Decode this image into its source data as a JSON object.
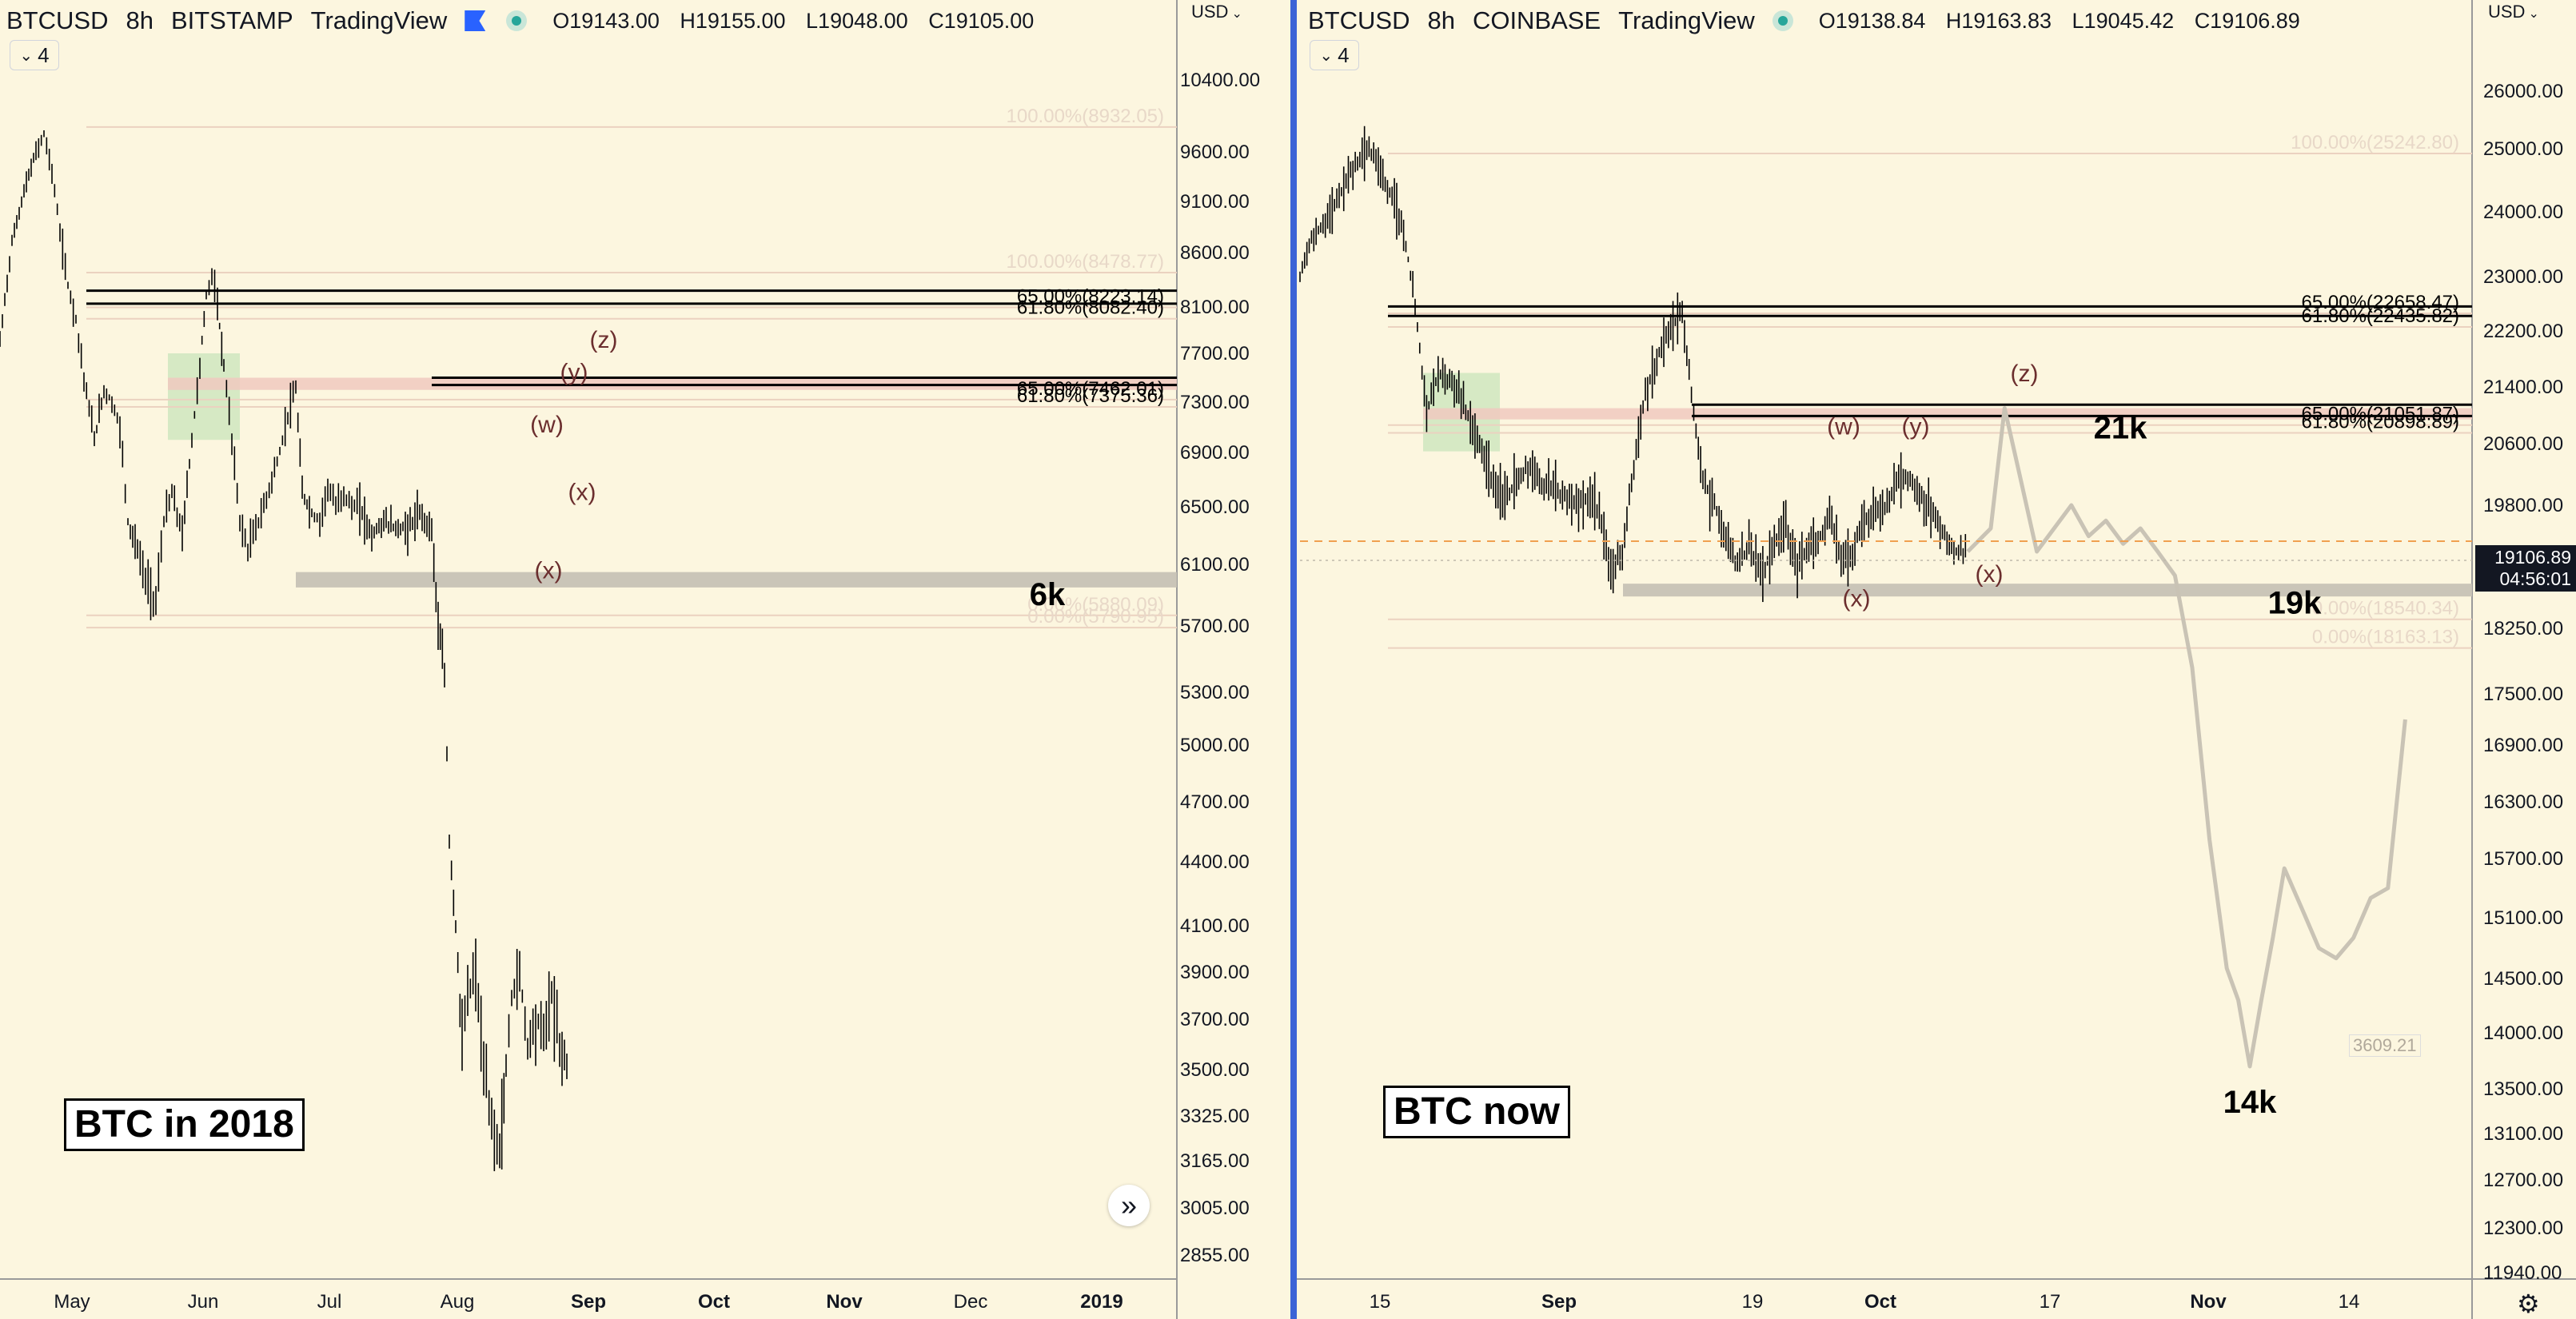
{
  "colors": {
    "background": "#fcf6df",
    "candle": "#000000",
    "fib_line": "#ebd2c0",
    "fib_text": "#e8d8c8",
    "support_band": "#c7c2b5",
    "resistance_band": "#f0c9bf",
    "accumulation_box": "#cfe6c0",
    "wave_label": "#6b2e2e",
    "projection": "#c9c3b5",
    "current_price_line": "#f0a050",
    "divider": "#3b63d6"
  },
  "chart_data": [
    {
      "type": "candlestick",
      "header": {
        "symbol": "BTCUSD",
        "interval": "8h",
        "exchange": "BITSTAMP",
        "source": "TradingView",
        "open": "O19143.00",
        "high": "H19155.00",
        "low": "L19048.00",
        "close": "C19105.00"
      },
      "collapse_label": "4",
      "currency": "USD",
      "title": "BTC in 2018",
      "y_ticks": [
        "10400.00",
        "9600.00",
        "9100.00",
        "8600.00",
        "8100.00",
        "7700.00",
        "7300.00",
        "6900.00",
        "6500.00",
        "6100.00",
        "5700.00",
        "5300.00",
        "5000.00",
        "4700.00",
        "4400.00",
        "4100.00",
        "3900.00",
        "3700.00",
        "3500.00",
        "3325.00",
        "3165.00",
        "3005.00",
        "2855.00"
      ],
      "x_ticks": [
        "May",
        "Jun",
        "Jul",
        "Aug",
        "Sep",
        "Oct",
        "Nov",
        "Dec",
        "2019"
      ],
      "last_price_tag": "3609.21",
      "price_path": [
        [
          0,
          7800
        ],
        [
          15,
          8700
        ],
        [
          30,
          9200
        ],
        [
          45,
          9600
        ],
        [
          55,
          9800
        ],
        [
          65,
          9400
        ],
        [
          75,
          8800
        ],
        [
          85,
          8300
        ],
        [
          95,
          8000
        ],
        [
          105,
          7500
        ],
        [
          118,
          7000
        ],
        [
          130,
          7400
        ],
        [
          140,
          7300
        ],
        [
          150,
          7100
        ],
        [
          160,
          6400
        ],
        [
          172,
          6200
        ],
        [
          182,
          6000
        ],
        [
          195,
          5850
        ],
        [
          205,
          6400
        ],
        [
          215,
          6600
        ],
        [
          228,
          6300
        ],
        [
          240,
          7000
        ],
        [
          250,
          7600
        ],
        [
          258,
          8200
        ],
        [
          265,
          8400
        ],
        [
          272,
          8100
        ],
        [
          280,
          7600
        ],
        [
          290,
          7000
        ],
        [
          300,
          6400
        ],
        [
          310,
          6200
        ],
        [
          320,
          6350
        ],
        [
          330,
          6500
        ],
        [
          340,
          6700
        ],
        [
          350,
          6900
        ],
        [
          360,
          7200
        ],
        [
          370,
          7400
        ],
        [
          378,
          6600
        ],
        [
          390,
          6450
        ],
        [
          400,
          6400
        ],
        [
          410,
          6650
        ],
        [
          420,
          6500
        ],
        [
          430,
          6600
        ],
        [
          440,
          6500
        ],
        [
          450,
          6500
        ],
        [
          465,
          6300
        ],
        [
          480,
          6400
        ],
        [
          495,
          6350
        ],
        [
          510,
          6350
        ],
        [
          525,
          6450
        ],
        [
          540,
          6350
        ],
        [
          548,
          5700
        ],
        [
          556,
          5400
        ],
        [
          562,
          4500
        ],
        [
          570,
          4100
        ],
        [
          578,
          3600
        ],
        [
          585,
          3800
        ],
        [
          595,
          3900
        ],
        [
          605,
          3500
        ],
        [
          615,
          3300
        ],
        [
          625,
          3200
        ],
        [
          633,
          3500
        ],
        [
          640,
          3800
        ],
        [
          650,
          3900
        ],
        [
          660,
          3600
        ],
        [
          670,
          3700
        ],
        [
          680,
          3650
        ],
        [
          690,
          3800
        ],
        [
          700,
          3600
        ],
        [
          712,
          3500
        ]
      ],
      "support_band": {
        "low": 5950,
        "high": 6050,
        "label": "6k"
      },
      "resistance_band": {
        "low": 7400,
        "high": 7500
      },
      "accumulation_zone": {
        "low": 7000,
        "high": 7700
      },
      "horizontal_lines": [
        8250,
        8130,
        7500,
        7440
      ],
      "fib_levels": [
        {
          "label": "100.00%(8932.05)",
          "price": 9930
        },
        {
          "label": "100.00%(8478.77)",
          "price": 8460
        },
        {
          "label": "65.00%(8223.14)",
          "price": 8140
        },
        {
          "label": "61.80%(8082.40)",
          "price": 8040
        },
        {
          "label": "65.00%(7462.01)",
          "price": 7360
        },
        {
          "label": "61.80%(7375.36)",
          "price": 7300
        },
        {
          "label": "0.00%(5880.09)",
          "price": 5800
        },
        {
          "label": "0.00%(5790.95)",
          "price": 5720
        }
      ],
      "wave_labels": [
        {
          "text": "(z)",
          "price": 7750
        },
        {
          "text": "(y)",
          "price": 7480
        },
        {
          "text": "(w)",
          "price": 7060
        },
        {
          "text": "(x)",
          "price": 6550
        },
        {
          "text": "(x)",
          "price": 6010
        }
      ]
    },
    {
      "type": "candlestick",
      "header": {
        "symbol": "BTCUSD",
        "interval": "8h",
        "exchange": "COINBASE",
        "source": "TradingView",
        "open": "O19138.84",
        "high": "H19163.83",
        "low": "L19045.42",
        "close": "C19106.89"
      },
      "collapse_label": "4",
      "currency": "USD",
      "title": "BTC now",
      "y_ticks": [
        "26000.00",
        "25000.00",
        "24000.00",
        "23000.00",
        "22200.00",
        "21400.00",
        "20600.00",
        "19800.00",
        "19106.89",
        "18250.00",
        "17500.00",
        "16900.00",
        "16300.00",
        "15700.00",
        "15100.00",
        "14500.00",
        "14000.00",
        "13500.00",
        "13100.00",
        "12700.00",
        "12300.00",
        "11940.00"
      ],
      "x_ticks": [
        "15",
        "Sep",
        "19",
        "Oct",
        "17",
        "Nov",
        "14"
      ],
      "current_price": "19106.89",
      "countdown": "04:56:01",
      "price_path": [
        [
          0,
          23000
        ],
        [
          10,
          23600
        ],
        [
          20,
          23800
        ],
        [
          30,
          24100
        ],
        [
          40,
          24500
        ],
        [
          50,
          24800
        ],
        [
          60,
          25050
        ],
        [
          70,
          24600
        ],
        [
          80,
          24200
        ],
        [
          90,
          23700
        ],
        [
          100,
          22600
        ],
        [
          110,
          21000
        ],
        [
          120,
          21600
        ],
        [
          130,
          21500
        ],
        [
          140,
          21200
        ],
        [
          150,
          20800
        ],
        [
          160,
          20400
        ],
        [
          170,
          20000
        ],
        [
          180,
          19900
        ],
        [
          190,
          20200
        ],
        [
          200,
          20300
        ],
        [
          210,
          20100
        ],
        [
          220,
          20000
        ],
        [
          230,
          19900
        ],
        [
          240,
          19800
        ],
        [
          250,
          19900
        ],
        [
          260,
          19700
        ],
        [
          270,
          19000
        ],
        [
          280,
          19200
        ],
        [
          290,
          20300
        ],
        [
          300,
          21300
        ],
        [
          310,
          21800
        ],
        [
          320,
          22200
        ],
        [
          332,
          22500
        ],
        [
          342,
          21000
        ],
        [
          350,
          20100
        ],
        [
          360,
          19800
        ],
        [
          370,
          19400
        ],
        [
          380,
          19000
        ],
        [
          390,
          19300
        ],
        [
          400,
          18900
        ],
        [
          410,
          19200
        ],
        [
          420,
          19600
        ],
        [
          430,
          19000
        ],
        [
          440,
          19200
        ],
        [
          450,
          19300
        ],
        [
          460,
          19700
        ],
        [
          470,
          19100
        ],
        [
          480,
          19200
        ],
        [
          490,
          19600
        ],
        [
          500,
          19700
        ],
        [
          510,
          19800
        ],
        [
          520,
          20200
        ],
        [
          530,
          20100
        ],
        [
          540,
          19900
        ],
        [
          550,
          19700
        ],
        [
          560,
          19400
        ],
        [
          570,
          19200
        ],
        [
          580,
          19200
        ]
      ],
      "projection_path": [
        [
          580,
          19200
        ],
        [
          600,
          19500
        ],
        [
          612,
          21100
        ],
        [
          625,
          20200
        ],
        [
          640,
          19200
        ],
        [
          655,
          19500
        ],
        [
          670,
          19800
        ],
        [
          685,
          19400
        ],
        [
          700,
          19600
        ],
        [
          715,
          19300
        ],
        [
          730,
          19500
        ],
        [
          745,
          19200
        ],
        [
          760,
          18900
        ],
        [
          775,
          17800
        ],
        [
          790,
          15900
        ],
        [
          805,
          14600
        ],
        [
          815,
          14300
        ],
        [
          825,
          13700
        ],
        [
          835,
          14300
        ],
        [
          845,
          14900
        ],
        [
          855,
          15600
        ],
        [
          870,
          15200
        ],
        [
          885,
          14800
        ],
        [
          900,
          14700
        ],
        [
          915,
          14900
        ],
        [
          930,
          15300
        ],
        [
          945,
          15400
        ],
        [
          960,
          17200
        ]
      ],
      "support_band": {
        "low": 18650,
        "high": 18800,
        "label": "19k"
      },
      "resistance_band": {
        "low": 20950,
        "high": 21100,
        "label": "21k"
      },
      "projection_target": "14k",
      "accumulation_zone": {
        "low": 20500,
        "high": 21600
      },
      "horizontal_lines": [
        22560,
        22420,
        21150,
        20990
      ],
      "fib_levels": [
        {
          "label": "100.00%(25242.80)",
          "price": 25000
        },
        {
          "label": "65.00%(22658.47)",
          "price": 22530
        },
        {
          "label": "61.80%(22435.82)",
          "price": 22330
        },
        {
          "label": "65.00%(21051.87)",
          "price": 20930
        },
        {
          "label": "61.80%(20898.89)",
          "price": 20820
        },
        {
          "label": "0.00%(18540.34)",
          "price": 18420
        },
        {
          "label": "0.00%(18163.13)",
          "price": 18080
        }
      ],
      "wave_labels": [
        {
          "text": "(z)",
          "price": 21480
        },
        {
          "text": "(w)",
          "price": 20730
        },
        {
          "text": "(y)",
          "price": 20730
        },
        {
          "text": "(x)",
          "price": 18520
        },
        {
          "text": "(x)",
          "price": 18820
        }
      ]
    }
  ]
}
